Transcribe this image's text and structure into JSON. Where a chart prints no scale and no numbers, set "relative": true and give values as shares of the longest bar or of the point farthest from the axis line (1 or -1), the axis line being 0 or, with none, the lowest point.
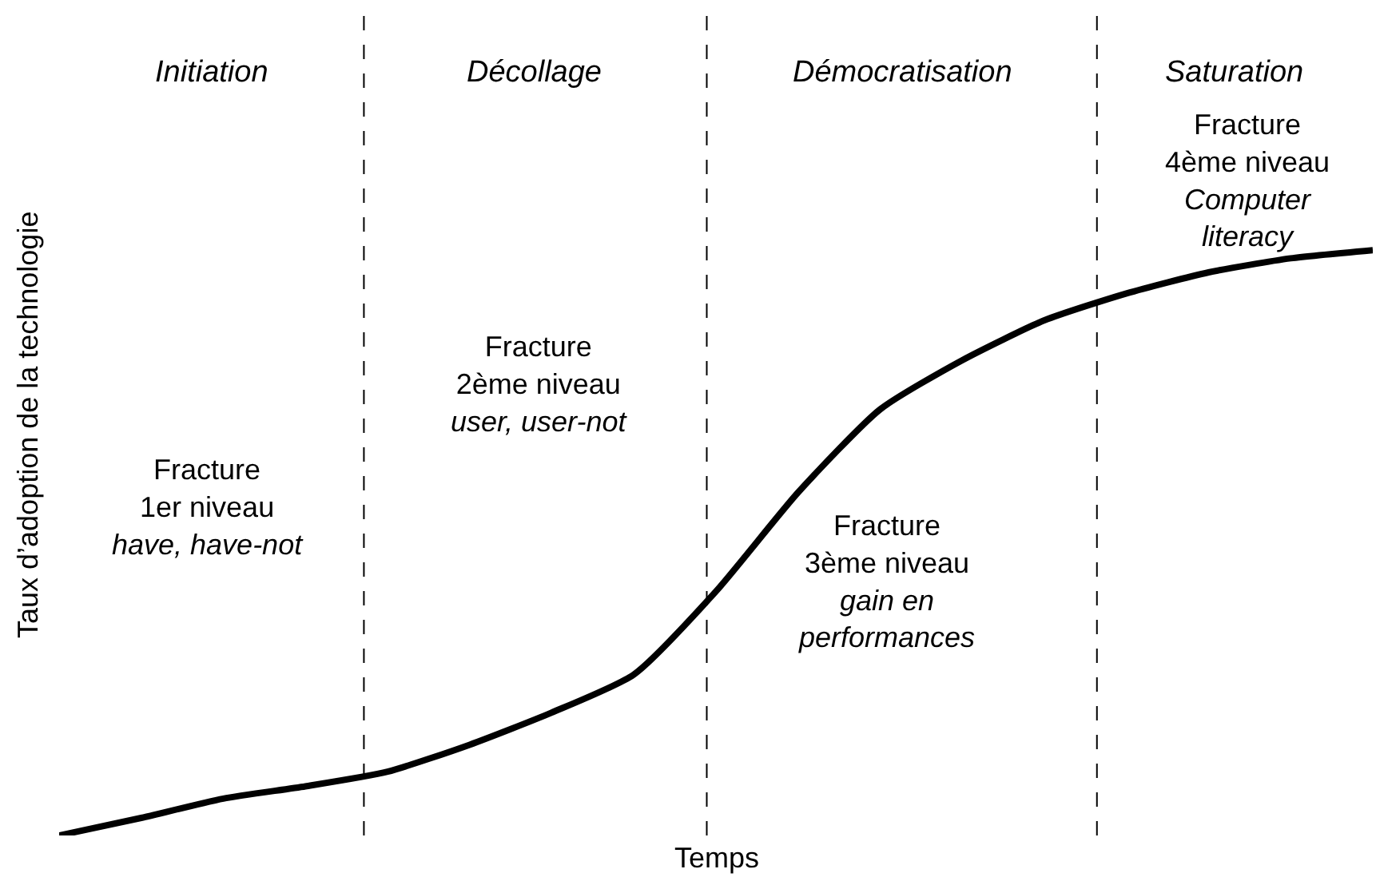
{
  "chart_data": {
    "type": "line",
    "relative": true,
    "xlabel": "Temps",
    "ylabel": "Taux d’adoption de la technologie",
    "categories": [
      null,
      null,
      null,
      null,
      null,
      null,
      null,
      null,
      null,
      null,
      null,
      null,
      null,
      null,
      null,
      null,
      null
    ],
    "series": [
      {
        "color": "#000000",
        "values": [
          0,
          0.03,
          0.063,
          0.084,
          0.109,
          0.155,
          0.21,
          0.275,
          0.417,
          0.586,
          0.728,
          0.812,
          0.88,
          0.926,
          0.962,
          0.986,
          1
        ]
      }
    ],
    "line_style": "solid",
    "marker": "none",
    "annotations": [
      "Initiation",
      "Décollage",
      "Démocratisation",
      "Saturation",
      "Fracture\n1er niveau\nhave, have-not",
      "Fracture\n2ème niveau\nuser, user-not",
      "Fracture\n3ème niveau\ngain en\nperformances",
      "Fracture\n4ème niveau\nComputer\nliteracy"
    ]
  }
}
